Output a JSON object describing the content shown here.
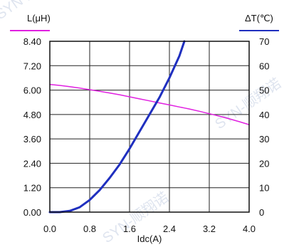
{
  "watermark": "SYN-顺翔诺",
  "chart_data": {
    "type": "line",
    "x": [
      0,
      0.2,
      0.4,
      0.6,
      0.8,
      1.0,
      1.2,
      1.4,
      1.6,
      1.8,
      2.0,
      2.2,
      2.4,
      2.6,
      2.7,
      2.8,
      3.0,
      3.2,
      3.4,
      3.6,
      3.8,
      4.0
    ],
    "xlabel": "Idc(A)",
    "xlim": [
      0,
      4.0
    ],
    "x_ticks": [
      "0.0",
      "0.8",
      "1.6",
      "2.4",
      "3.2",
      "4.0"
    ],
    "left_axis": {
      "label": "L(μH)",
      "ylim": [
        0,
        8.4
      ],
      "ticks": [
        "8.40",
        "7.20",
        "6.00",
        "4.80",
        "3.60",
        "2.40",
        "1.20",
        "0.00"
      ]
    },
    "right_axis": {
      "label": "ΔT(℃)",
      "ylim": [
        0,
        70
      ],
      "ticks": [
        "70",
        "60",
        "50",
        "40",
        "30",
        "20",
        "10",
        "0"
      ]
    },
    "series": [
      {
        "axis": "left",
        "color": "#e020e0",
        "values": [
          6.28,
          6.23,
          6.17,
          6.1,
          6.02,
          5.94,
          5.86,
          5.77,
          5.67,
          5.57,
          5.47,
          5.37,
          5.27,
          5.17,
          5.12,
          5.07,
          4.96,
          4.84,
          4.72,
          4.59,
          4.45,
          4.3
        ]
      },
      {
        "axis": "right",
        "color": "#1f2fbf",
        "values": [
          0,
          0,
          0.5,
          2,
          5,
          9,
          14,
          19.5,
          26,
          33,
          40,
          47,
          55,
          64,
          70,
          null,
          null,
          null,
          null,
          null,
          null,
          null
        ]
      }
    ],
    "grid": true
  }
}
